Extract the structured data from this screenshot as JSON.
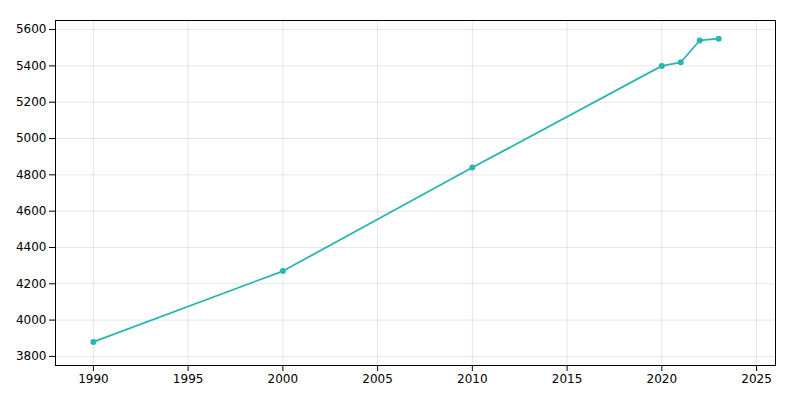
{
  "chart_data": {
    "type": "line",
    "x": [
      1990,
      2000,
      2010,
      2020,
      2021,
      2022,
      2023
    ],
    "values": [
      3880,
      4270,
      4840,
      5400,
      5420,
      5540,
      5550
    ],
    "color": "#2ab5b0",
    "marker": "circle",
    "xlim": [
      1988,
      2026
    ],
    "ylim": [
      3750,
      5650
    ],
    "xticks": [
      1990,
      1995,
      2000,
      2005,
      2010,
      2015,
      2020,
      2025
    ],
    "yticks": [
      3800,
      4000,
      4200,
      4400,
      4600,
      4800,
      5000,
      5200,
      5400,
      5600
    ],
    "grid": true
  }
}
